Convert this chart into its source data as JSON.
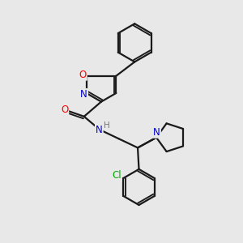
{
  "bg_color": "#e8e8e8",
  "bond_color": "#1a1a1a",
  "bond_width": 1.6,
  "atom_colors": {
    "O": "#ff0000",
    "N": "#0000cc",
    "Cl": "#00aa00",
    "H": "#777777"
  },
  "font_size": 8.5,
  "fig_size": [
    3.0,
    3.0
  ],
  "dpi": 100
}
